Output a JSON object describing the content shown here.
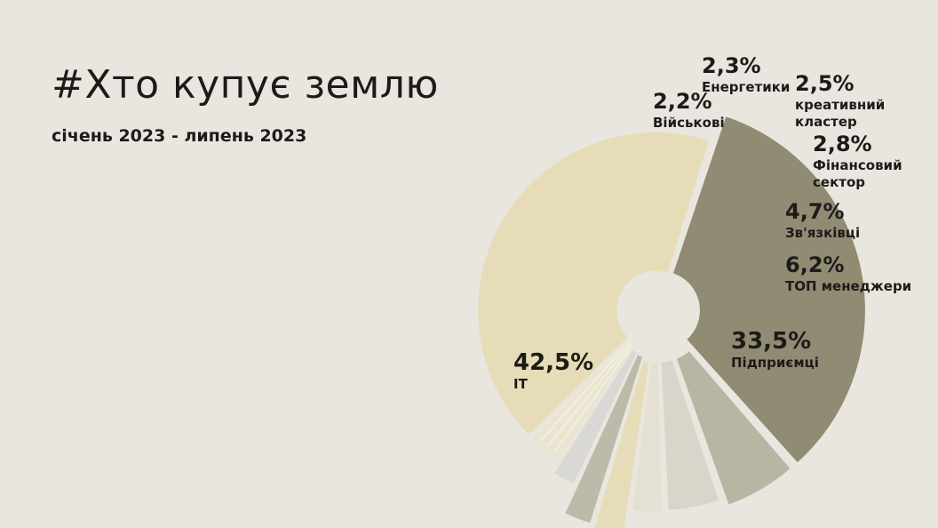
{
  "header": {
    "title": "#Хто купує землю",
    "subtitle": "січень 2023 - липень 2023"
  },
  "chart_data": {
    "type": "pie",
    "style": "exploded donut, decreasing radius",
    "values_unit": "%",
    "slices": [
      {
        "name": "ІТ",
        "value": 42.5,
        "display": "42,5%",
        "color": "#e6dcb7"
      },
      {
        "name": "Підприємці",
        "value": 33.5,
        "display": "33,5%",
        "color": "#918b73"
      },
      {
        "name": "ТОП менеджери",
        "value": 6.2,
        "display": "6,2%",
        "color": "#b9b5a3"
      },
      {
        "name": "Зв'язківці",
        "value": 4.7,
        "display": "4,7%",
        "color": "#d8d5ca"
      },
      {
        "name": "Фінансовий сектор",
        "value": 2.8,
        "display": "2,8%",
        "color": "#e4e1d2"
      },
      {
        "name": "креативний кластер",
        "value": 2.5,
        "display": "2,5%",
        "color": "#e6dcb7"
      },
      {
        "name": "Енергетики",
        "value": 2.3,
        "display": "2,3%",
        "color": "#bdbaa9"
      },
      {
        "name": "Військові",
        "value": 2.2,
        "display": "2,2%",
        "color": "#d9d8d4"
      },
      {
        "name": "",
        "value": 3.3,
        "display": "",
        "color": "#ebe5cf"
      }
    ],
    "labels": [
      {
        "value": "42,5%",
        "lines": [
          "ІТ"
        ]
      },
      {
        "value": "33,5%",
        "lines": [
          "Підприємці"
        ]
      },
      {
        "value": "6,2%",
        "lines": [
          "ТОП менеджери"
        ]
      },
      {
        "value": "4,7%",
        "lines": [
          "Зв'язківці"
        ]
      },
      {
        "value": "2,8%",
        "lines": [
          "Фінансовий",
          "сектор"
        ]
      },
      {
        "value": "2,5%",
        "lines": [
          "креативний",
          "кластер"
        ]
      },
      {
        "value": "2,3%",
        "lines": [
          "Енергетики"
        ]
      },
      {
        "value": "2,2%",
        "lines": [
          "Військові"
        ]
      }
    ]
  }
}
